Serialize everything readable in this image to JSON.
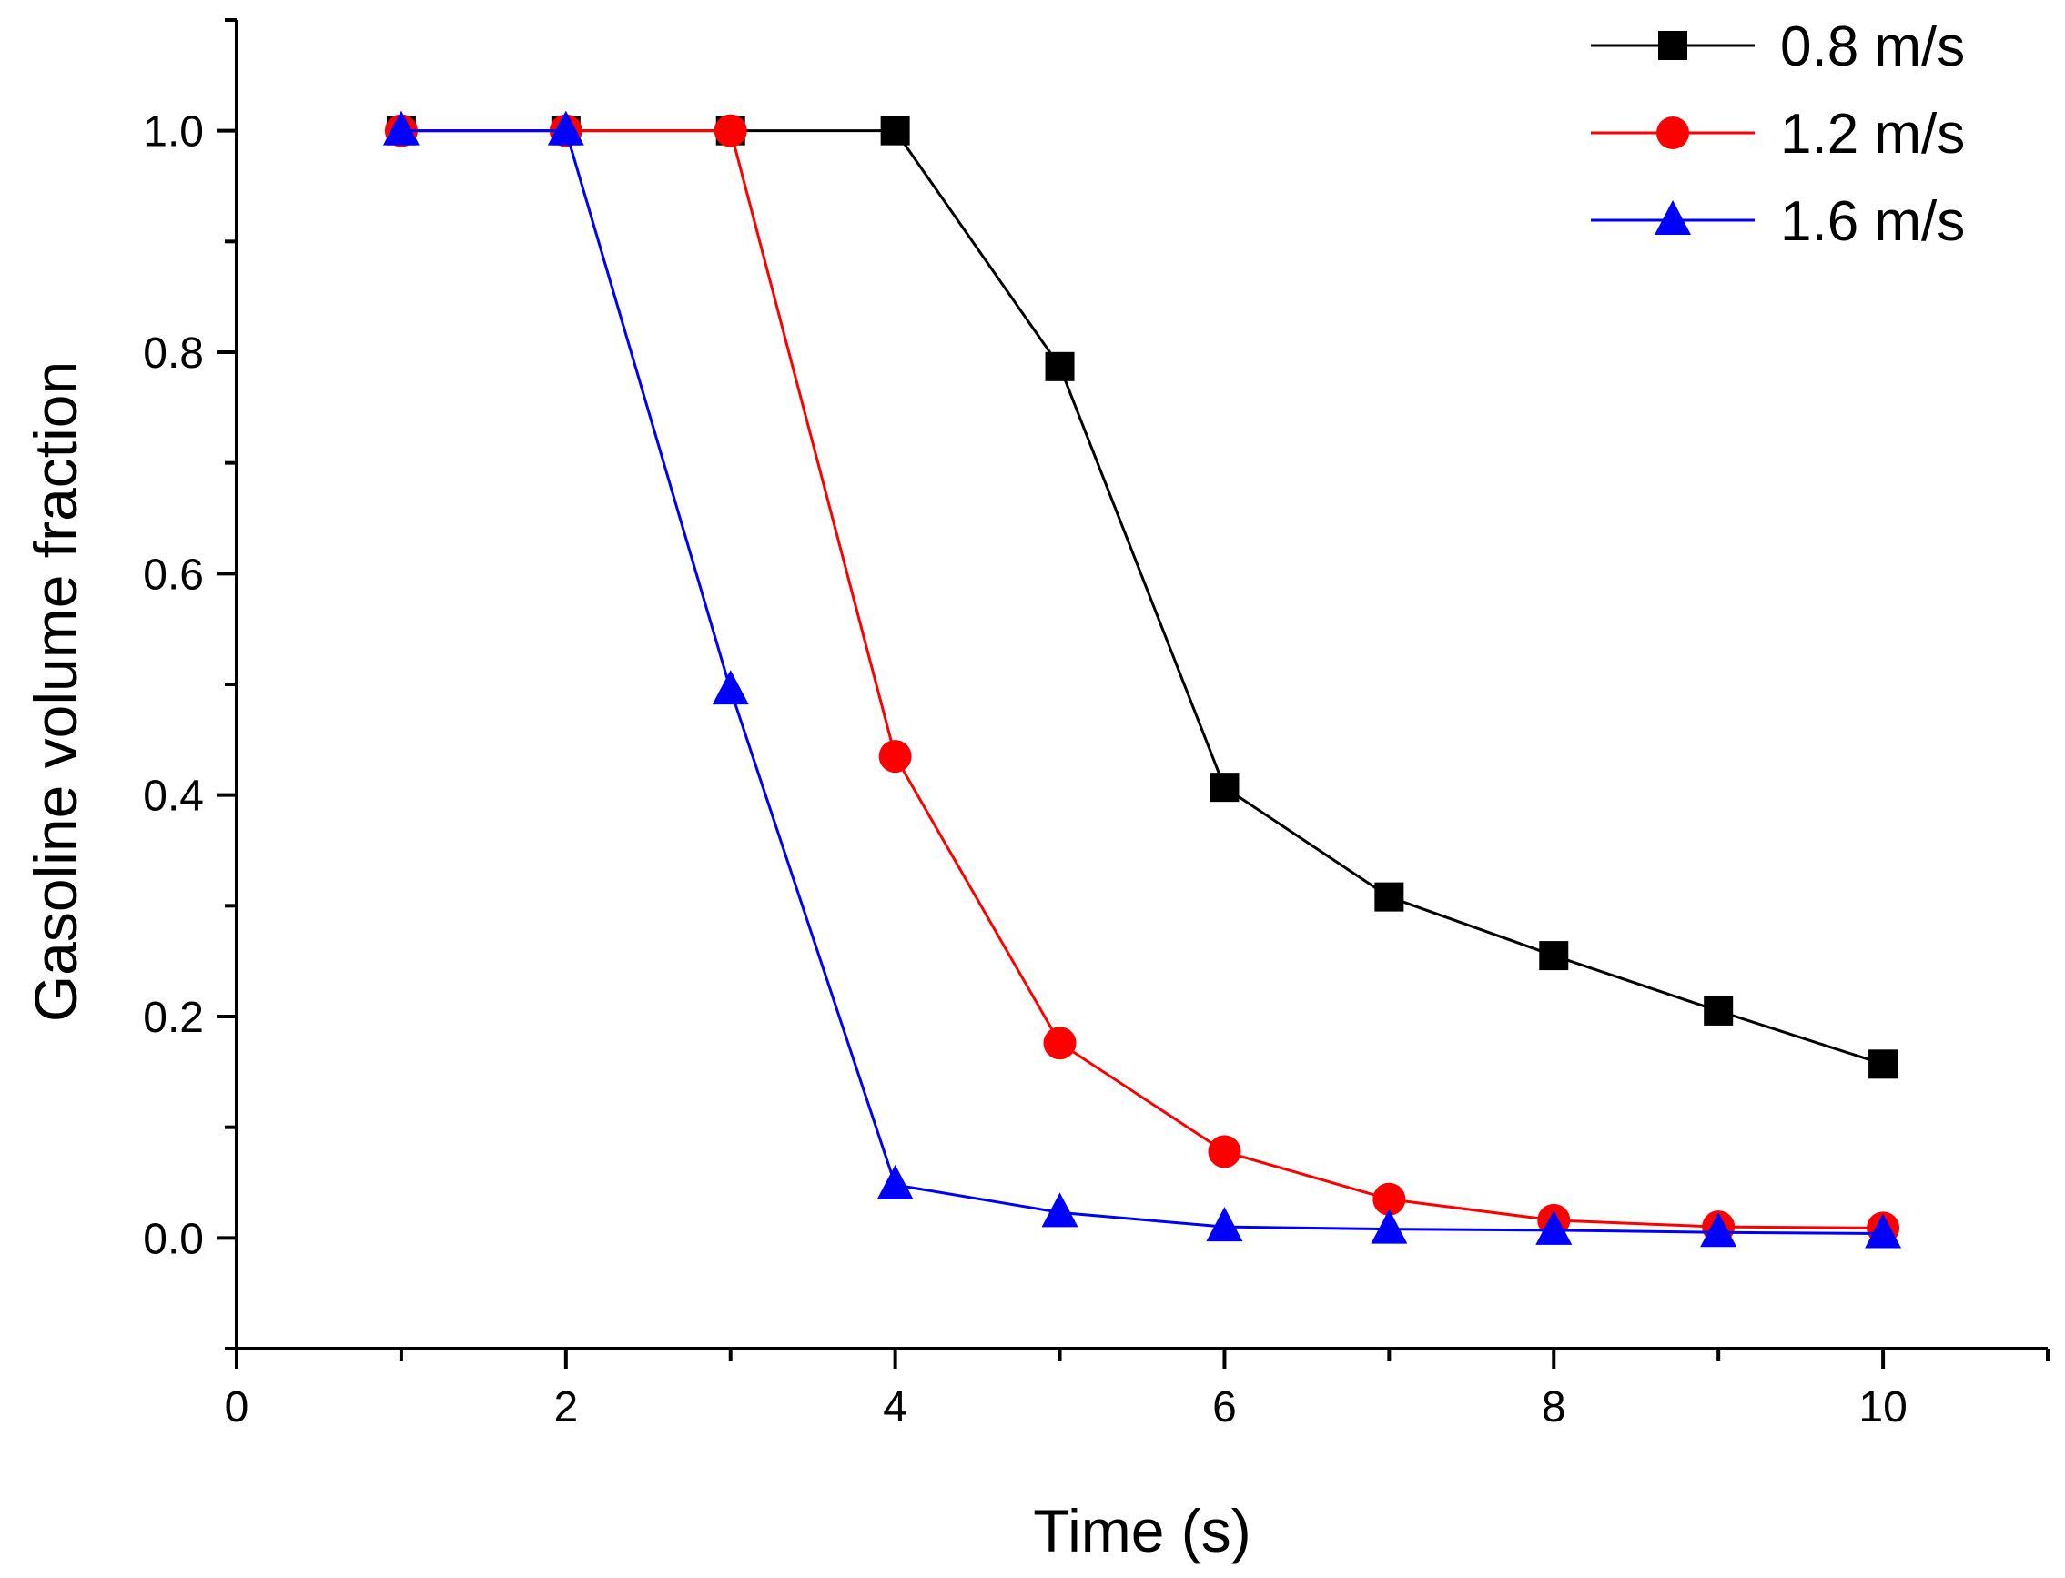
{
  "chart_data": {
    "type": "line",
    "xlabel": "Time (s)",
    "ylabel": "Gasoline volume fraction",
    "xlim": [
      0,
      11
    ],
    "ylim": [
      -0.1,
      1.1
    ],
    "xticks": [
      0,
      2,
      4,
      6,
      8,
      10
    ],
    "yticks": [
      0.0,
      0.2,
      0.4,
      0.6,
      0.8,
      1.0
    ],
    "xtick_labels": [
      "0",
      "2",
      "4",
      "6",
      "8",
      "10"
    ],
    "ytick_labels": [
      "0.0",
      "0.2",
      "0.4",
      "0.6",
      "0.8",
      "1.0"
    ],
    "grid": false,
    "legend_position": "top-right",
    "x": [
      1,
      2,
      3,
      4,
      5,
      6,
      7,
      8,
      9,
      10
    ],
    "series": [
      {
        "name": "0.8 m/s",
        "color": "#000000",
        "marker": "square",
        "values": [
          1.0,
          1.0,
          1.0,
          1.0,
          0.787,
          0.407,
          0.308,
          0.255,
          0.205,
          0.157
        ]
      },
      {
        "name": "1.2 m/s",
        "color": "#ff0000",
        "marker": "circle",
        "values": [
          1.0,
          1.0,
          1.0,
          0.435,
          0.176,
          0.078,
          0.035,
          0.016,
          0.01,
          0.009
        ]
      },
      {
        "name": "1.6 m/s",
        "color": "#0000ff",
        "marker": "triangle",
        "values": [
          1.0,
          1.0,
          0.495,
          0.048,
          0.023,
          0.01,
          0.008,
          0.007,
          0.005,
          0.004
        ]
      }
    ]
  }
}
